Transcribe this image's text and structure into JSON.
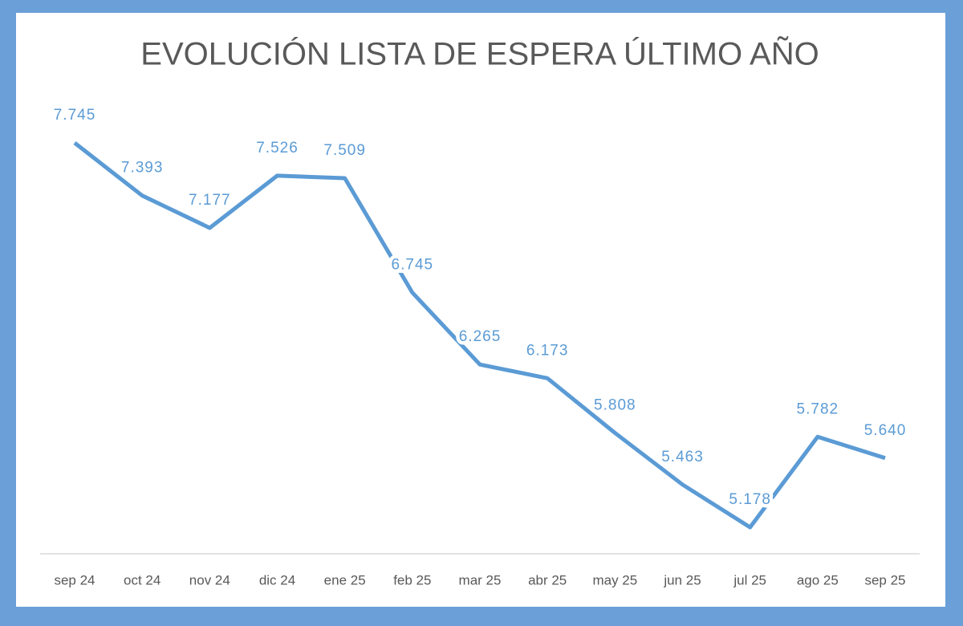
{
  "chart_data": {
    "type": "line",
    "title": "EVOLUCIÓN LISTA DE ESPERA ÚLTIMO AÑO",
    "categories": [
      "sep 24",
      "oct 24",
      "nov 24",
      "dic 24",
      "ene 25",
      "feb 25",
      "mar 25",
      "abr 25",
      "may 25",
      "jun 25",
      "jul 25",
      "ago 25",
      "sep 25"
    ],
    "values": [
      7745,
      7393,
      7177,
      7526,
      7509,
      6745,
      6265,
      6173,
      5808,
      5463,
      5178,
      5782,
      5640
    ],
    "value_labels": [
      "7.745",
      "7.393",
      "7.177",
      "7.526",
      "7.509",
      "6.745",
      "6.265",
      "6.173",
      "5.808",
      "5.463",
      "5.178",
      "5.782",
      "5.640"
    ],
    "color": "#5b9bd5"
  }
}
